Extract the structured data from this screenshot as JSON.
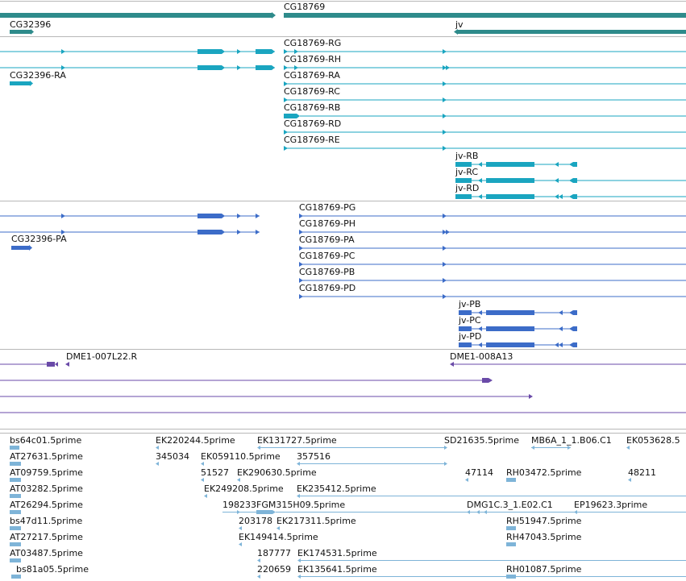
{
  "colors": {
    "gene": "#2e8b8b",
    "transcript": "#1aa5c0",
    "protein": "#3c6cc8",
    "clone": "#6a4aa8",
    "est": "#7eb4d8",
    "separator": "#b8b8b8"
  },
  "genes": [
    {
      "id": "CG18769",
      "label": "CG18769"
    },
    {
      "id": "CG32396",
      "label": "CG32396"
    },
    {
      "id": "jv",
      "label": "jv"
    }
  ],
  "transcripts": [
    {
      "label": "CG18769-RG"
    },
    {
      "label": "CG18769-RH"
    },
    {
      "label": "CG32396-RA"
    },
    {
      "label": "CG18769-RA"
    },
    {
      "label": "CG18769-RC"
    },
    {
      "label": "CG18769-RB"
    },
    {
      "label": "CG18769-RD"
    },
    {
      "label": "CG18769-RE"
    },
    {
      "label": "jv-RB"
    },
    {
      "label": "jv-RC"
    },
    {
      "label": "jv-RD"
    }
  ],
  "proteins": [
    {
      "label": "CG18769-PG"
    },
    {
      "label": "CG18769-PH"
    },
    {
      "label": "CG32396-PA"
    },
    {
      "label": "CG18769-PA"
    },
    {
      "label": "CG18769-PC"
    },
    {
      "label": "CG18769-PB"
    },
    {
      "label": "CG18769-PD"
    },
    {
      "label": "jv-PB"
    },
    {
      "label": "jv-PC"
    },
    {
      "label": "jv-PD"
    }
  ],
  "clones": [
    {
      "label": "DME1-007L22.R"
    },
    {
      "label": "DME1-008A13"
    }
  ],
  "ests": [
    {
      "label": "bs64c01.5prime"
    },
    {
      "label": "EK220244.5prime"
    },
    {
      "label": "EK131727.5prime"
    },
    {
      "label": "SD21635.5prime"
    },
    {
      "label": "MB6A_1_1.B06.C1"
    },
    {
      "label": "EK053628.5"
    },
    {
      "label": "AT27631.5prime"
    },
    {
      "label": "345034"
    },
    {
      "label": "EK059110.5prime"
    },
    {
      "label": "357516"
    },
    {
      "label": "AT09759.5prime"
    },
    {
      "label": "51527"
    },
    {
      "label": "EK290630.5prime"
    },
    {
      "label": "47114"
    },
    {
      "label": "RH03472.5prime"
    },
    {
      "label": "48211"
    },
    {
      "label": "AT03282.5prime"
    },
    {
      "label": "EK249208.5prime"
    },
    {
      "label": "EK235412.5prime"
    },
    {
      "label": "AT26294.5prime"
    },
    {
      "label": "198233"
    },
    {
      "label": "FGM315H09.5prime"
    },
    {
      "label": "DMG1C.3_1.E02.C1"
    },
    {
      "label": "EP19623.3prime"
    },
    {
      "label": "bs47d11.5prime"
    },
    {
      "label": "203178"
    },
    {
      "label": "EK217311.5prime"
    },
    {
      "label": "RH51947.5prime"
    },
    {
      "label": "AT27217.5prime"
    },
    {
      "label": "EK149414.5prime"
    },
    {
      "label": "RH47043.5prime"
    },
    {
      "label": "AT03487.5prime"
    },
    {
      "label": "187777"
    },
    {
      "label": "EK174531.5prime"
    },
    {
      "label": "bs81a05.5prime"
    },
    {
      "label": "220659"
    },
    {
      "label": "EK135641.5prime"
    },
    {
      "label": "RH01087.5prime"
    }
  ]
}
